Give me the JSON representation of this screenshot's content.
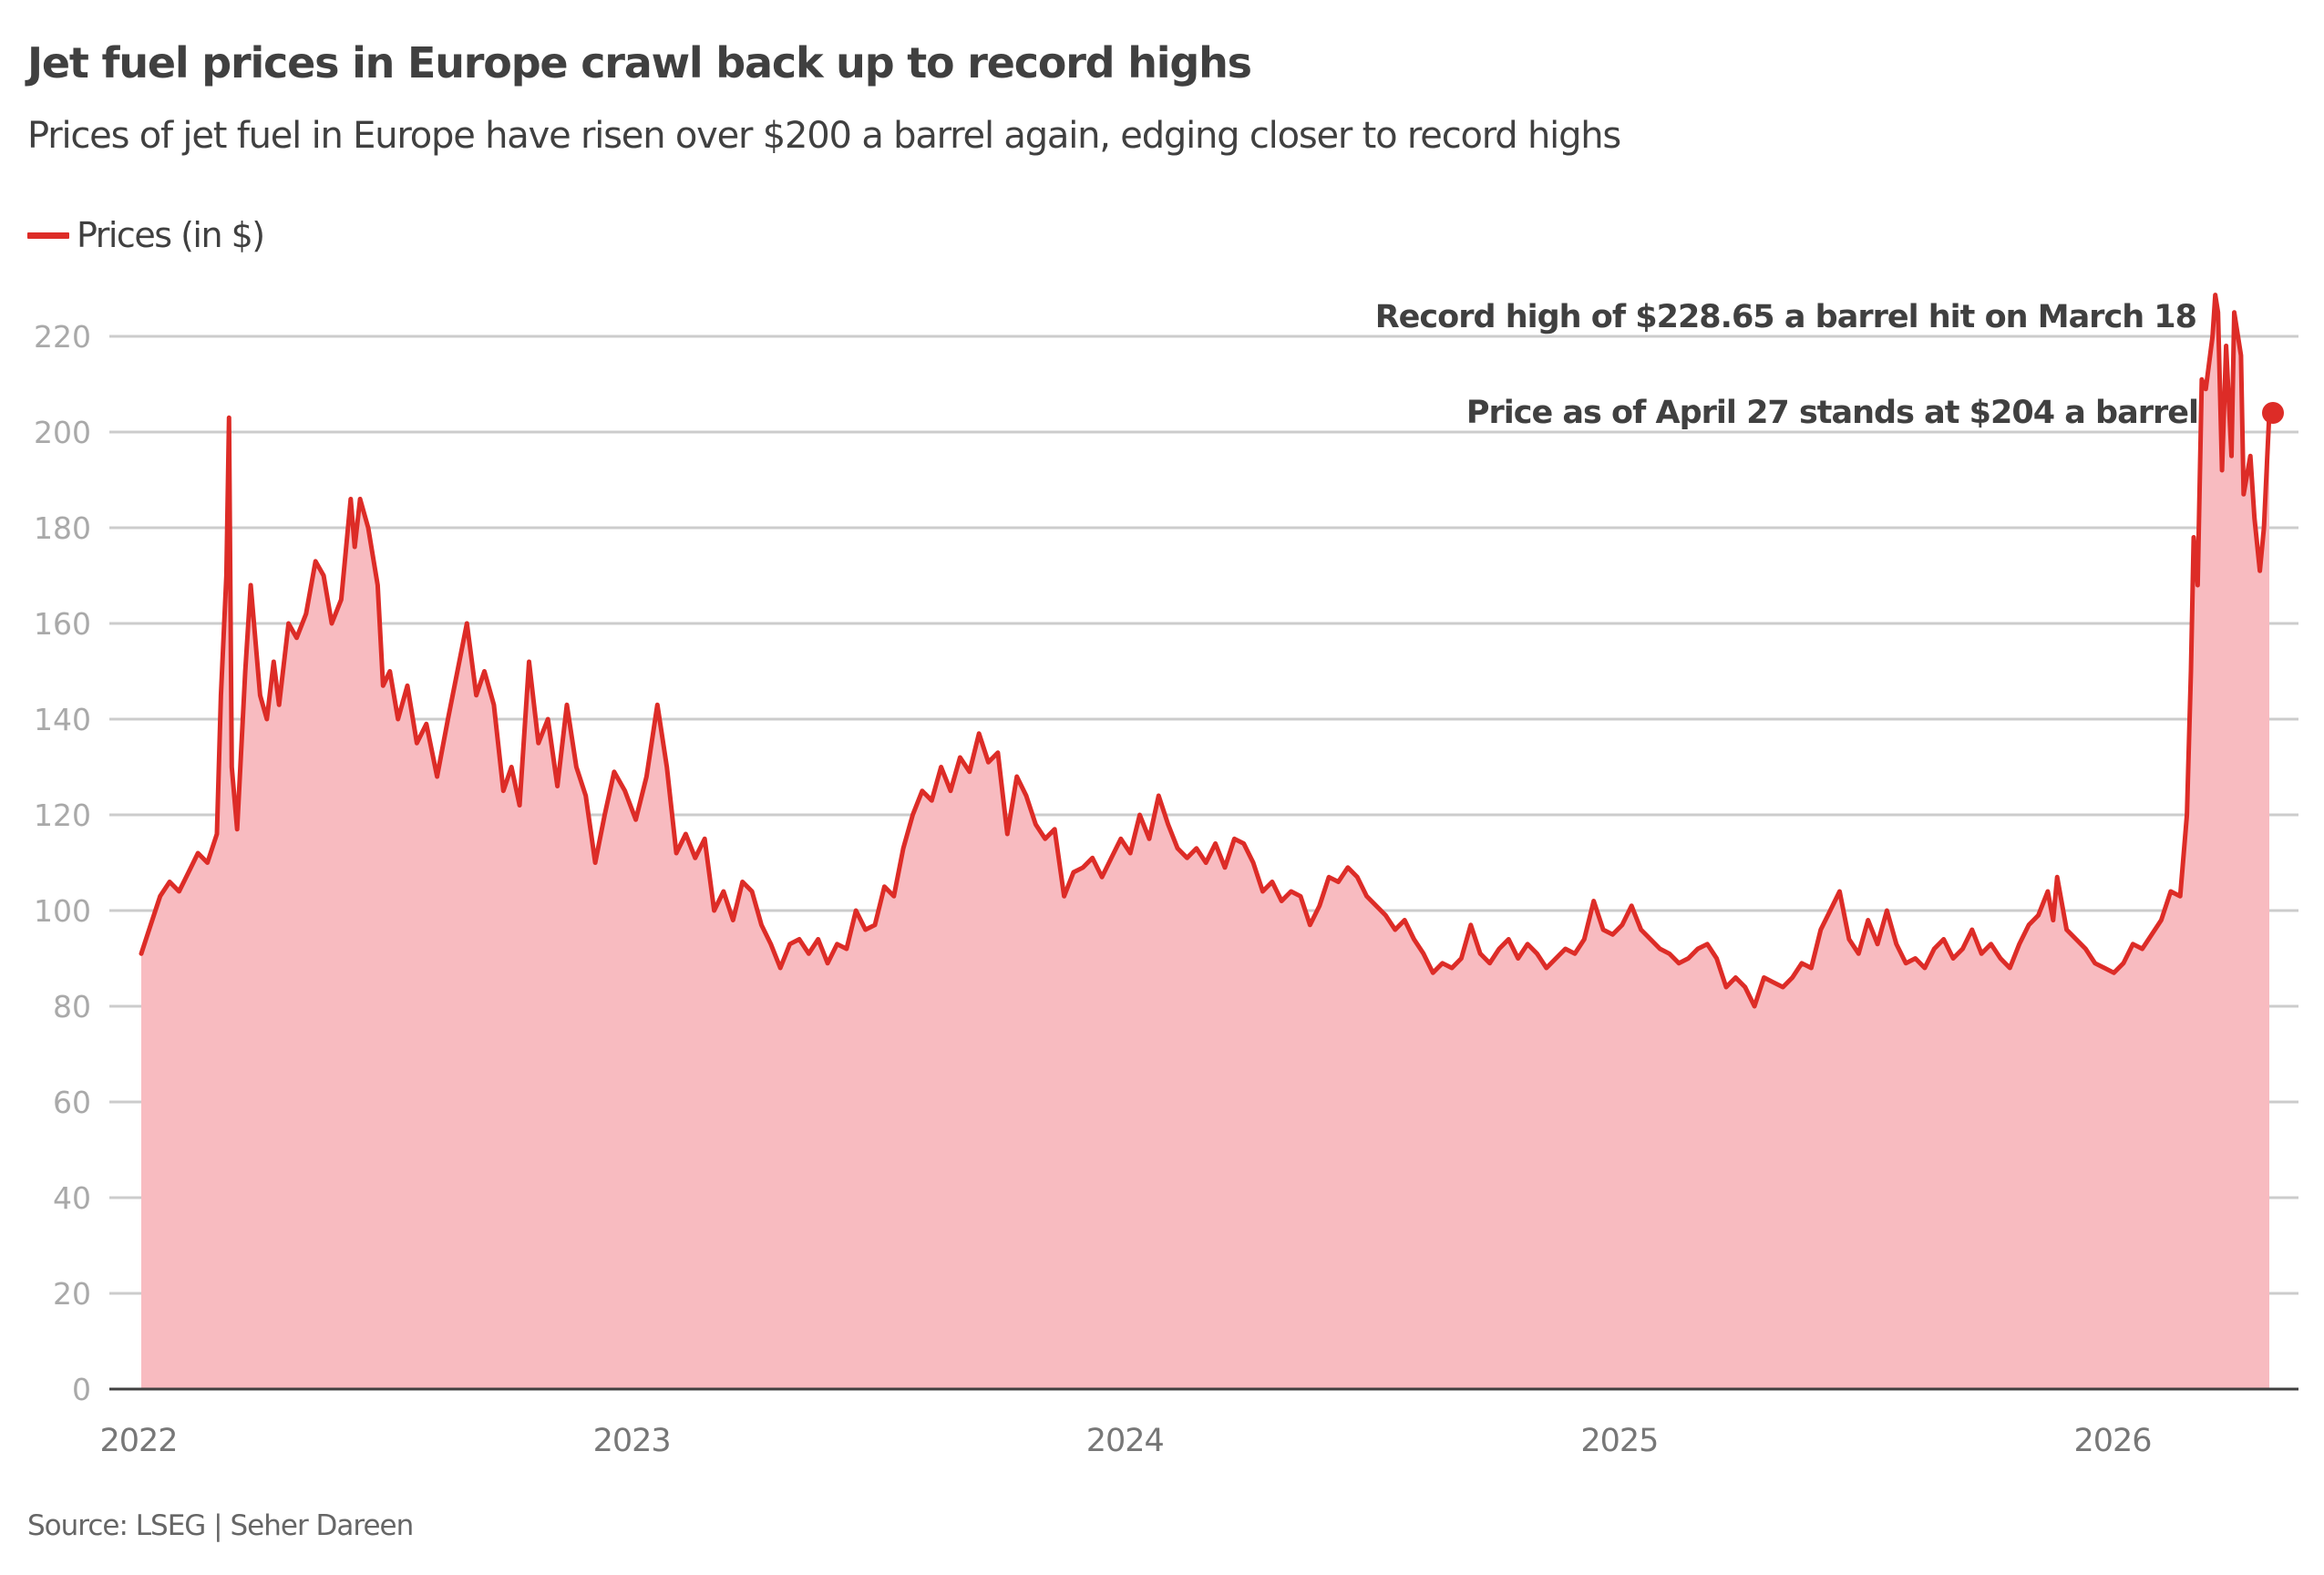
{
  "header": {
    "title": "Jet fuel prices in Europe crawl back up to record highs",
    "subtitle": "Prices of jet fuel in Europe have risen over $200 a barrel again, edging closer to record highs"
  },
  "legend": {
    "label": "Prices (in $)",
    "color": "#dd2c27"
  },
  "footer": {
    "source": "Source: LSEG | Seher Dareen"
  },
  "colors": {
    "line": "#dd2c27",
    "area": "#f8bbc0",
    "grid": "#cccccc",
    "axis": "#404040",
    "text": "#404040"
  },
  "chart_data": {
    "type": "area",
    "title": "Jet fuel prices in Europe crawl back up to record highs",
    "subtitle": "Prices of jet fuel in Europe have risen over $200 a barrel again, edging closer to record highs",
    "xlabel": "",
    "ylabel": "",
    "ylim": [
      0,
      220
    ],
    "xlim": [
      "2022-01-01",
      "2026-04-27"
    ],
    "yticks": [
      0,
      20,
      40,
      60,
      80,
      100,
      120,
      140,
      160,
      180,
      200,
      220
    ],
    "xticks": [
      {
        "date": "2022-01-01",
        "label": "2022"
      },
      {
        "date": "2023-01-01",
        "label": "2023"
      },
      {
        "date": "2024-01-01",
        "label": "2024"
      },
      {
        "date": "2025-01-01",
        "label": "2025"
      },
      {
        "date": "2026-01-01",
        "label": "2026"
      }
    ],
    "grid": true,
    "legend_position": "top-left",
    "series": [
      {
        "name": "Prices (in $)",
        "points": [
          [
            "2022-01-03",
            91
          ],
          [
            "2022-01-10",
            97
          ],
          [
            "2022-01-17",
            103
          ],
          [
            "2022-01-24",
            106
          ],
          [
            "2022-01-31",
            104
          ],
          [
            "2022-02-07",
            108
          ],
          [
            "2022-02-14",
            112
          ],
          [
            "2022-02-21",
            110
          ],
          [
            "2022-02-28",
            116
          ],
          [
            "2022-03-03",
            145
          ],
          [
            "2022-03-07",
            170
          ],
          [
            "2022-03-09",
            203
          ],
          [
            "2022-03-11",
            130
          ],
          [
            "2022-03-15",
            117
          ],
          [
            "2022-03-21",
            150
          ],
          [
            "2022-03-25",
            168
          ],
          [
            "2022-04-01",
            145
          ],
          [
            "2022-04-06",
            140
          ],
          [
            "2022-04-11",
            152
          ],
          [
            "2022-04-15",
            143
          ],
          [
            "2022-04-22",
            160
          ],
          [
            "2022-04-28",
            157
          ],
          [
            "2022-05-05",
            162
          ],
          [
            "2022-05-12",
            173
          ],
          [
            "2022-05-18",
            170
          ],
          [
            "2022-05-24",
            160
          ],
          [
            "2022-05-31",
            165
          ],
          [
            "2022-06-07",
            186
          ],
          [
            "2022-06-10",
            176
          ],
          [
            "2022-06-14",
            186
          ],
          [
            "2022-06-20",
            180
          ],
          [
            "2022-06-27",
            168
          ],
          [
            "2022-07-01",
            147
          ],
          [
            "2022-07-06",
            150
          ],
          [
            "2022-07-12",
            140
          ],
          [
            "2022-07-19",
            147
          ],
          [
            "2022-07-26",
            135
          ],
          [
            "2022-08-02",
            139
          ],
          [
            "2022-08-10",
            128
          ],
          [
            "2022-08-18",
            140
          ],
          [
            "2022-08-25",
            150
          ],
          [
            "2022-09-01",
            160
          ],
          [
            "2022-09-08",
            145
          ],
          [
            "2022-09-14",
            150
          ],
          [
            "2022-09-21",
            143
          ],
          [
            "2022-09-28",
            125
          ],
          [
            "2022-10-04",
            130
          ],
          [
            "2022-10-10",
            122
          ],
          [
            "2022-10-17",
            152
          ],
          [
            "2022-10-24",
            135
          ],
          [
            "2022-10-31",
            140
          ],
          [
            "2022-11-07",
            126
          ],
          [
            "2022-11-14",
            143
          ],
          [
            "2022-11-21",
            130
          ],
          [
            "2022-11-28",
            124
          ],
          [
            "2022-12-05",
            110
          ],
          [
            "2022-12-12",
            120
          ],
          [
            "2022-12-19",
            129
          ],
          [
            "2022-12-27",
            125
          ],
          [
            "2023-01-04",
            119
          ],
          [
            "2023-01-12",
            128
          ],
          [
            "2023-01-20",
            143
          ],
          [
            "2023-01-27",
            130
          ],
          [
            "2023-02-03",
            112
          ],
          [
            "2023-02-10",
            116
          ],
          [
            "2023-02-17",
            111
          ],
          [
            "2023-02-24",
            115
          ],
          [
            "2023-03-03",
            100
          ],
          [
            "2023-03-10",
            104
          ],
          [
            "2023-03-17",
            98
          ],
          [
            "2023-03-24",
            106
          ],
          [
            "2023-03-31",
            104
          ],
          [
            "2023-04-07",
            97
          ],
          [
            "2023-04-14",
            93
          ],
          [
            "2023-04-21",
            88
          ],
          [
            "2023-04-28",
            93
          ],
          [
            "2023-05-05",
            94
          ],
          [
            "2023-05-12",
            91
          ],
          [
            "2023-05-19",
            94
          ],
          [
            "2023-05-26",
            89
          ],
          [
            "2023-06-02",
            93
          ],
          [
            "2023-06-09",
            92
          ],
          [
            "2023-06-16",
            100
          ],
          [
            "2023-06-23",
            96
          ],
          [
            "2023-06-30",
            97
          ],
          [
            "2023-07-07",
            105
          ],
          [
            "2023-07-14",
            103
          ],
          [
            "2023-07-21",
            113
          ],
          [
            "2023-07-28",
            120
          ],
          [
            "2023-08-04",
            125
          ],
          [
            "2023-08-11",
            123
          ],
          [
            "2023-08-18",
            130
          ],
          [
            "2023-08-25",
            125
          ],
          [
            "2023-09-01",
            132
          ],
          [
            "2023-09-08",
            129
          ],
          [
            "2023-09-15",
            137
          ],
          [
            "2023-09-22",
            131
          ],
          [
            "2023-09-29",
            133
          ],
          [
            "2023-10-06",
            116
          ],
          [
            "2023-10-13",
            128
          ],
          [
            "2023-10-20",
            124
          ],
          [
            "2023-10-27",
            118
          ],
          [
            "2023-11-03",
            115
          ],
          [
            "2023-11-10",
            117
          ],
          [
            "2023-11-17",
            103
          ],
          [
            "2023-11-24",
            108
          ],
          [
            "2023-12-01",
            109
          ],
          [
            "2023-12-08",
            111
          ],
          [
            "2023-12-15",
            107
          ],
          [
            "2023-12-22",
            111
          ],
          [
            "2023-12-29",
            115
          ],
          [
            "2024-01-05",
            112
          ],
          [
            "2024-01-12",
            120
          ],
          [
            "2024-01-19",
            115
          ],
          [
            "2024-01-26",
            124
          ],
          [
            "2024-02-02",
            118
          ],
          [
            "2024-02-09",
            113
          ],
          [
            "2024-02-16",
            111
          ],
          [
            "2024-02-23",
            113
          ],
          [
            "2024-03-01",
            110
          ],
          [
            "2024-03-08",
            114
          ],
          [
            "2024-03-15",
            109
          ],
          [
            "2024-03-22",
            115
          ],
          [
            "2024-03-29",
            114
          ],
          [
            "2024-04-05",
            110
          ],
          [
            "2024-04-12",
            104
          ],
          [
            "2024-04-19",
            106
          ],
          [
            "2024-04-26",
            102
          ],
          [
            "2024-05-03",
            104
          ],
          [
            "2024-05-10",
            103
          ],
          [
            "2024-05-17",
            97
          ],
          [
            "2024-05-24",
            101
          ],
          [
            "2024-05-31",
            107
          ],
          [
            "2024-06-07",
            106
          ],
          [
            "2024-06-14",
            109
          ],
          [
            "2024-06-21",
            107
          ],
          [
            "2024-06-28",
            103
          ],
          [
            "2024-07-05",
            101
          ],
          [
            "2024-07-12",
            99
          ],
          [
            "2024-07-19",
            96
          ],
          [
            "2024-07-26",
            98
          ],
          [
            "2024-08-02",
            94
          ],
          [
            "2024-08-09",
            91
          ],
          [
            "2024-08-16",
            87
          ],
          [
            "2024-08-23",
            89
          ],
          [
            "2024-08-30",
            88
          ],
          [
            "2024-09-06",
            90
          ],
          [
            "2024-09-13",
            97
          ],
          [
            "2024-09-20",
            91
          ],
          [
            "2024-09-27",
            89
          ],
          [
            "2024-10-04",
            92
          ],
          [
            "2024-10-11",
            94
          ],
          [
            "2024-10-18",
            90
          ],
          [
            "2024-10-25",
            93
          ],
          [
            "2024-11-01",
            91
          ],
          [
            "2024-11-08",
            88
          ],
          [
            "2024-11-15",
            90
          ],
          [
            "2024-11-22",
            92
          ],
          [
            "2024-11-29",
            91
          ],
          [
            "2024-12-06",
            94
          ],
          [
            "2024-12-13",
            102
          ],
          [
            "2024-12-20",
            96
          ],
          [
            "2024-12-27",
            95
          ],
          [
            "2025-01-03",
            97
          ],
          [
            "2025-01-10",
            101
          ],
          [
            "2025-01-17",
            96
          ],
          [
            "2025-01-24",
            94
          ],
          [
            "2025-01-31",
            92
          ],
          [
            "2025-02-07",
            91
          ],
          [
            "2025-02-14",
            89
          ],
          [
            "2025-02-21",
            90
          ],
          [
            "2025-02-28",
            92
          ],
          [
            "2025-03-07",
            93
          ],
          [
            "2025-03-14",
            90
          ],
          [
            "2025-03-21",
            84
          ],
          [
            "2025-03-28",
            86
          ],
          [
            "2025-04-04",
            84
          ],
          [
            "2025-04-11",
            80
          ],
          [
            "2025-04-18",
            86
          ],
          [
            "2025-04-25",
            85
          ],
          [
            "2025-05-02",
            84
          ],
          [
            "2025-05-09",
            86
          ],
          [
            "2025-05-16",
            89
          ],
          [
            "2025-05-23",
            88
          ],
          [
            "2025-05-30",
            96
          ],
          [
            "2025-06-06",
            100
          ],
          [
            "2025-06-13",
            104
          ],
          [
            "2025-06-20",
            94
          ],
          [
            "2025-06-27",
            91
          ],
          [
            "2025-07-04",
            98
          ],
          [
            "2025-07-11",
            93
          ],
          [
            "2025-07-18",
            100
          ],
          [
            "2025-07-25",
            93
          ],
          [
            "2025-08-01",
            89
          ],
          [
            "2025-08-08",
            90
          ],
          [
            "2025-08-15",
            88
          ],
          [
            "2025-08-22",
            92
          ],
          [
            "2025-08-29",
            94
          ],
          [
            "2025-09-05",
            90
          ],
          [
            "2025-09-12",
            92
          ],
          [
            "2025-09-19",
            96
          ],
          [
            "2025-09-26",
            91
          ],
          [
            "2025-10-03",
            93
          ],
          [
            "2025-10-10",
            90
          ],
          [
            "2025-10-17",
            88
          ],
          [
            "2025-10-24",
            93
          ],
          [
            "2025-10-31",
            97
          ],
          [
            "2025-11-07",
            99
          ],
          [
            "2025-11-14",
            104
          ],
          [
            "2025-11-18",
            98
          ],
          [
            "2025-11-21",
            107
          ],
          [
            "2025-11-28",
            96
          ],
          [
            "2025-12-05",
            94
          ],
          [
            "2025-12-12",
            92
          ],
          [
            "2025-12-19",
            89
          ],
          [
            "2025-12-26",
            88
          ],
          [
            "2026-01-02",
            87
          ],
          [
            "2026-01-09",
            89
          ],
          [
            "2026-01-16",
            93
          ],
          [
            "2026-01-23",
            92
          ],
          [
            "2026-01-30",
            95
          ],
          [
            "2026-02-06",
            98
          ],
          [
            "2026-02-13",
            104
          ],
          [
            "2026-02-20",
            103
          ],
          [
            "2026-02-25",
            120
          ],
          [
            "2026-02-28",
            150
          ],
          [
            "2026-03-02",
            178
          ],
          [
            "2026-03-05",
            168
          ],
          [
            "2026-03-08",
            211
          ],
          [
            "2026-03-11",
            209
          ],
          [
            "2026-03-16",
            220
          ],
          [
            "2026-03-18",
            228.65
          ],
          [
            "2026-03-20",
            225
          ],
          [
            "2026-03-23",
            192
          ],
          [
            "2026-03-26",
            218
          ],
          [
            "2026-03-30",
            195
          ],
          [
            "2026-04-01",
            225
          ],
          [
            "2026-04-06",
            216
          ],
          [
            "2026-04-08",
            187
          ],
          [
            "2026-04-13",
            195
          ],
          [
            "2026-04-16",
            182
          ],
          [
            "2026-04-20",
            171
          ],
          [
            "2026-04-23",
            180
          ],
          [
            "2026-04-27",
            204
          ]
        ]
      }
    ],
    "annotations": [
      {
        "text": "Record high of $228.65 a barrel hit on March 18",
        "date": "2026-03-18",
        "value": 228.65
      },
      {
        "text": "Price as of April 27 stands at $204 a barrel",
        "date": "2026-04-27",
        "value": 204
      }
    ]
  }
}
